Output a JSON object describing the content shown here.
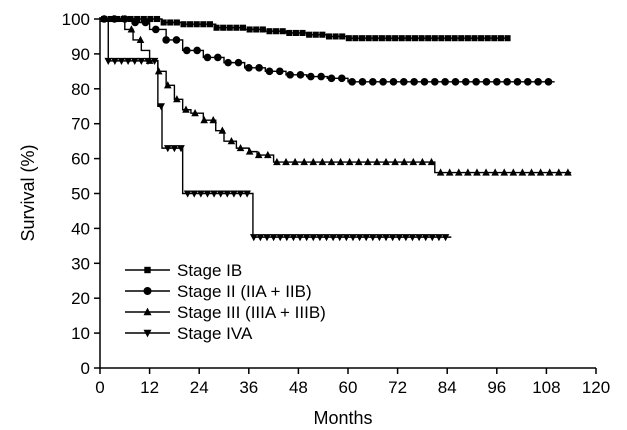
{
  "chart_data": {
    "type": "line",
    "title": "",
    "xlabel": "Months",
    "ylabel": "Survival (%)",
    "xlim": [
      0,
      120
    ],
    "ylim": [
      0,
      100
    ],
    "xticks": [
      0,
      12,
      24,
      36,
      48,
      60,
      72,
      84,
      96,
      108,
      120
    ],
    "yticks": [
      0,
      10,
      20,
      30,
      40,
      50,
      60,
      70,
      80,
      90,
      100
    ],
    "grid": false,
    "legend_position": "lower-left",
    "step": true,
    "series": [
      {
        "name": "Stage IB",
        "marker": "square",
        "x": [
          0,
          15,
          20,
          28,
          35,
          40,
          45,
          50,
          55,
          60,
          70,
          80,
          90,
          99
        ],
        "y": [
          100,
          99,
          98.5,
          97.5,
          97,
          96.5,
          96,
          95.5,
          95,
          94.5,
          94.5,
          94.5,
          94.5,
          94.5
        ]
      },
      {
        "name": "Stage II (IIA + IIB)",
        "marker": "circle",
        "x": [
          0,
          8,
          12,
          16,
          20,
          25,
          30,
          35,
          40,
          45,
          50,
          55,
          60,
          70,
          80,
          90,
          100,
          110
        ],
        "y": [
          100,
          99,
          97,
          94,
          91,
          89,
          87.5,
          86,
          85,
          84,
          83.5,
          83,
          82,
          82,
          82,
          82,
          82,
          82
        ]
      },
      {
        "name": "Stage III (IIIA + IIIB)",
        "marker": "triangle-up",
        "x": [
          0,
          6,
          8,
          10,
          12,
          14,
          16,
          18,
          20,
          22,
          25,
          28,
          30,
          33,
          36,
          38,
          42,
          48,
          60,
          80,
          81,
          90,
          100,
          114
        ],
        "y": [
          100,
          97,
          94,
          91,
          88,
          85,
          81,
          77,
          74,
          73,
          71,
          68,
          65,
          63,
          62,
          61,
          59,
          59,
          59,
          59,
          56,
          56,
          56,
          56
        ]
      },
      {
        "name": "Stage IVA",
        "marker": "triangle-down",
        "x": [
          0,
          2,
          14,
          15,
          18,
          20,
          37,
          50,
          60,
          70,
          80,
          85
        ],
        "y": [
          100,
          88,
          75,
          63,
          63,
          50,
          37.5,
          37.5,
          37.5,
          37.5,
          37.5,
          37.5
        ]
      }
    ]
  }
}
